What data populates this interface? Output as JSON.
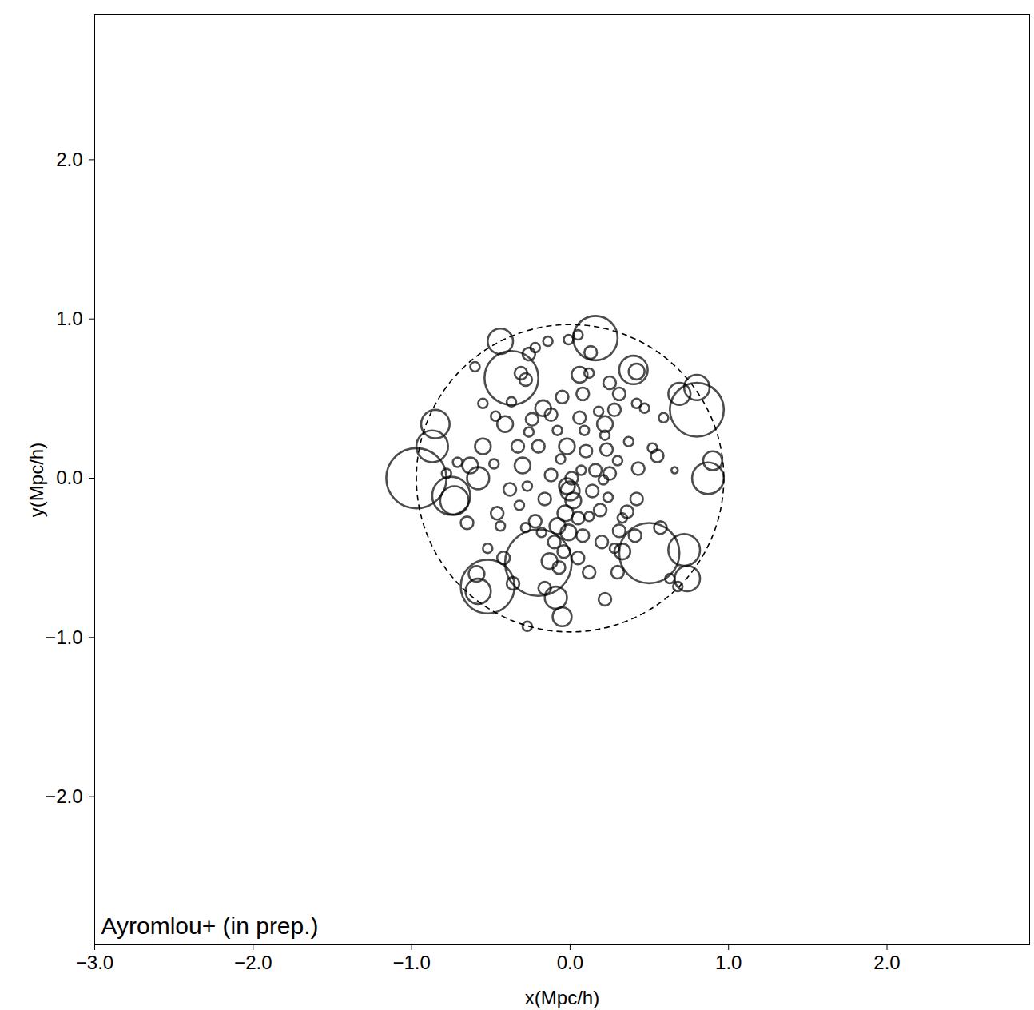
{
  "chart_data": {
    "type": "scatter",
    "x_label": "x(Mpc/h)",
    "y_label": "y(Mpc/h)",
    "annotation": "Ayromlou+ (in prep.)",
    "xlim": [
      -3,
      2.9
    ],
    "ylim": [
      -2.93,
      2.91
    ],
    "xticks": [
      -3,
      -2,
      -1,
      0,
      1,
      2
    ],
    "yticks": [
      -2,
      -1,
      0,
      1,
      2
    ],
    "grid": false,
    "color": "#000000",
    "marker": "circle",
    "x": [
      -0.97,
      0.5,
      -0.2,
      -0.52,
      0.16,
      -0.37,
      0.8,
      0.4,
      -0.85,
      -0.87,
      -0.73,
      -0.75,
      -0.44,
      0.87,
      0.9,
      0.72,
      0.74,
      0.8,
      0.69,
      -0.58,
      -0.59,
      -0.09,
      -0.05,
      0.06,
      0.13,
      -0.28,
      -0.31,
      -0.58,
      -0.55,
      -0.63,
      -0.41,
      -0.24,
      -0.12,
      0.06,
      0.22,
      0.31,
      0.42,
      0.25,
      -0.05,
      -0.17,
      -0.02,
      0.1,
      0.23,
      0.25,
      0.43,
      0.55,
      0.42,
      0.57,
      0.33,
      0.31,
      0.2,
      0.12,
      0.22,
      -0.27,
      -0.36,
      -0.42,
      -0.52,
      -0.46,
      -0.38,
      -0.3,
      -0.2,
      -0.12,
      -0.02,
      0.01,
      0.0,
      0.02,
      -0.03,
      0.05,
      -0.08,
      -0.01,
      -0.1,
      0.08,
      -0.04,
      0.05,
      -0.13,
      -0.07,
      0.07,
      0.14,
      0.19,
      0.24,
      0.16,
      -0.16,
      -0.22,
      -0.28,
      -0.18,
      0.12,
      0.22,
      0.3,
      0.37,
      0.42,
      0.47,
      0.59,
      0.66,
      0.52,
      0.36,
      0.41,
      0.63,
      0.68,
      -0.71,
      -0.78,
      -0.65,
      -0.44,
      -0.48,
      -0.47,
      -0.55,
      -0.6,
      -0.22,
      -0.14,
      -0.01,
      0.05,
      -0.26,
      0.08,
      0.12,
      0.28,
      -0.33,
      -0.26,
      0.18,
      -0.37,
      0.09,
      -0.08,
      0.3,
      0.33,
      -0.27,
      -0.32,
      0.21,
      -0.06,
      -0.16,
      0.28
    ],
    "y": [
      0.0,
      -0.47,
      -0.53,
      -0.68,
      0.88,
      0.63,
      0.43,
      0.68,
      0.34,
      0.2,
      -0.14,
      -0.11,
      0.86,
      0.0,
      0.11,
      -0.45,
      -0.63,
      0.57,
      0.53,
      -0.71,
      -0.6,
      -0.75,
      -0.87,
      0.65,
      0.79,
      0.62,
      0.66,
      0.0,
      0.2,
      0.08,
      0.34,
      0.37,
      0.4,
      0.38,
      0.34,
      0.53,
      0.67,
      0.6,
      0.51,
      0.44,
      0.2,
      0.17,
      0.18,
      0.03,
      0.06,
      0.14,
      -0.13,
      -0.31,
      -0.46,
      -0.33,
      -0.4,
      -0.59,
      -0.76,
      -0.93,
      -0.66,
      -0.5,
      -0.44,
      -0.22,
      -0.07,
      0.08,
      0.2,
      0.02,
      -0.05,
      0.0,
      -0.08,
      -0.14,
      -0.22,
      -0.25,
      -0.3,
      -0.34,
      -0.4,
      -0.36,
      -0.46,
      -0.5,
      -0.52,
      -0.56,
      0.05,
      -0.08,
      -0.2,
      -0.12,
      0.05,
      -0.13,
      -0.27,
      -0.31,
      -0.34,
      -0.24,
      0.27,
      0.11,
      0.23,
      0.47,
      0.44,
      0.38,
      0.05,
      0.19,
      -0.21,
      -0.36,
      -0.63,
      -0.68,
      0.1,
      0.03,
      -0.28,
      -0.3,
      0.09,
      0.39,
      0.47,
      0.7,
      0.82,
      0.86,
      0.87,
      0.9,
      0.78,
      0.53,
      0.66,
      0.43,
      0.2,
      0.29,
      0.42,
      0.48,
      0.3,
      0.3,
      -0.59,
      -0.25,
      -0.05,
      -0.17,
      -0.01,
      0.12,
      -0.69,
      -0.44
    ],
    "radius": [
      0.19,
      0.19,
      0.21,
      0.17,
      0.14,
      0.17,
      0.17,
      0.09,
      0.09,
      0.1,
      0.09,
      0.12,
      0.08,
      0.1,
      0.06,
      0.1,
      0.08,
      0.08,
      0.07,
      0.08,
      0.05,
      0.07,
      0.06,
      0.05,
      0.04,
      0.04,
      0.04,
      0.07,
      0.05,
      0.05,
      0.05,
      0.04,
      0.04,
      0.04,
      0.05,
      0.04,
      0.05,
      0.04,
      0.04,
      0.05,
      0.05,
      0.04,
      0.04,
      0.04,
      0.04,
      0.04,
      0.04,
      0.04,
      0.05,
      0.04,
      0.04,
      0.04,
      0.04,
      0.03,
      0.04,
      0.04,
      0.03,
      0.04,
      0.04,
      0.05,
      0.04,
      0.04,
      0.05,
      0.04,
      0.06,
      0.05,
      0.05,
      0.04,
      0.05,
      0.05,
      0.04,
      0.04,
      0.04,
      0.04,
      0.05,
      0.04,
      0.03,
      0.04,
      0.04,
      0.03,
      0.04,
      0.04,
      0.04,
      0.03,
      0.03,
      0.03,
      0.03,
      0.03,
      0.03,
      0.03,
      0.03,
      0.03,
      0.02,
      0.03,
      0.04,
      0.04,
      0.03,
      0.03,
      0.03,
      0.03,
      0.04,
      0.03,
      0.03,
      0.03,
      0.03,
      0.03,
      0.03,
      0.03,
      0.03,
      0.03,
      0.04,
      0.04,
      0.03,
      0.04,
      0.04,
      0.03,
      0.03,
      0.03,
      0.03,
      0.03,
      0.04,
      0.03,
      0.03,
      0.03,
      0.03,
      0.03,
      0.04,
      0.03
    ],
    "boundary": {
      "x": 0,
      "y": 0,
      "radius": 0.97,
      "line_style": "dashed"
    }
  }
}
